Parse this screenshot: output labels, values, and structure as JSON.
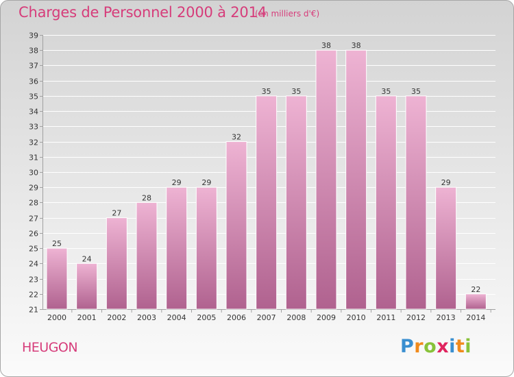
{
  "header": {
    "title": "Charges de Personnel 2000 à 2014",
    "subtitle": "(en milliers d'€)"
  },
  "footer": {
    "commune": "HEUGON",
    "brand": {
      "text": "Proxiti",
      "letters": [
        "P",
        "r",
        "o",
        "x",
        "i",
        "t",
        "i"
      ],
      "colors": [
        "#3a8fd0",
        "#f08a1c",
        "#88c23a",
        "#e0245e",
        "#3a8fd0",
        "#f08a1c",
        "#88c23a"
      ]
    }
  },
  "colors": {
    "accent": "#d63c7a",
    "bar_top": "#eeb3d3",
    "bar_bottom": "#b0628f",
    "grid": "#ffffff",
    "axis": "#a0a0a0",
    "label_text": "#333333"
  },
  "chart_data": {
    "type": "bar",
    "title": "Charges de Personnel 2000 à 2014",
    "subtitle": "(en milliers d'€)",
    "categories": [
      "2000",
      "2001",
      "2002",
      "2003",
      "2004",
      "2005",
      "2006",
      "2007",
      "2008",
      "2009",
      "2010",
      "2011",
      "2012",
      "2013",
      "2014"
    ],
    "values": [
      25,
      24,
      27,
      28,
      29,
      29,
      32,
      35,
      35,
      38,
      38,
      35,
      35,
      29,
      22
    ],
    "ylim": [
      21,
      39
    ],
    "yticks": [
      21,
      22,
      23,
      24,
      25,
      26,
      27,
      28,
      29,
      30,
      31,
      32,
      33,
      34,
      35,
      36,
      37,
      38,
      39
    ],
    "xlabel": "",
    "ylabel": "",
    "grid": true,
    "data_labels": true,
    "legend": "none"
  }
}
